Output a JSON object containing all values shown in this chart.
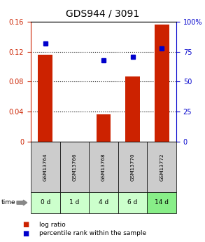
{
  "title": "GDS944 / 3091",
  "samples": [
    "GSM13764",
    "GSM13766",
    "GSM13768",
    "GSM13770",
    "GSM13772"
  ],
  "time_labels": [
    "0 d",
    "1 d",
    "4 d",
    "6 d",
    "14 d"
  ],
  "log_ratio": [
    0.116,
    0.0,
    0.036,
    0.087,
    0.156
  ],
  "percentile_rank": [
    82.0,
    0.0,
    68.0,
    71.0,
    78.0
  ],
  "ylim_left": [
    0,
    0.16
  ],
  "ylim_right": [
    0,
    100
  ],
  "yticks_left": [
    0,
    0.04,
    0.08,
    0.12,
    0.16
  ],
  "ytick_labels_left": [
    "0",
    "0.04",
    "0.08",
    "0.12",
    "0.16"
  ],
  "yticks_right": [
    0,
    25,
    50,
    75,
    100
  ],
  "ytick_labels_right": [
    "0",
    "25",
    "50",
    "75",
    "100%"
  ],
  "bar_color": "#cc2200",
  "scatter_color": "#0000cc",
  "grid_color": "#000000",
  "bar_width": 0.5,
  "sample_bg_color": "#cccccc",
  "time_bg_colors": [
    "#ccffcc",
    "#ccffcc",
    "#ccffcc",
    "#ccffcc",
    "#88ee88"
  ],
  "title_fontsize": 10,
  "tick_fontsize": 7,
  "legend_fontsize": 6.5
}
